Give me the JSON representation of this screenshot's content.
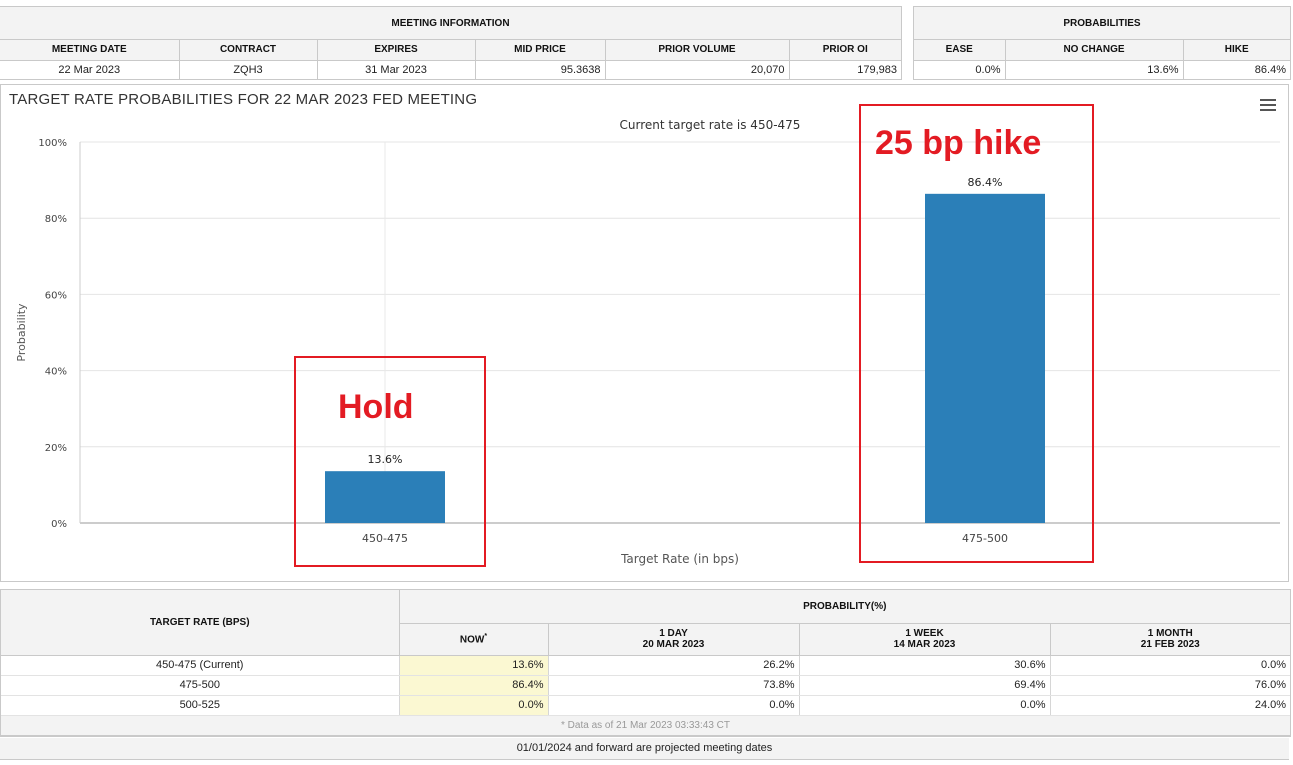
{
  "meeting_info": {
    "header": "MEETING INFORMATION",
    "columns": [
      "MEETING DATE",
      "CONTRACT",
      "EXPIRES",
      "MID PRICE",
      "PRIOR VOLUME",
      "PRIOR OI"
    ],
    "row": [
      "22 Mar 2023",
      "ZQH3",
      "31 Mar 2023",
      "95.3638",
      "20,070",
      "179,983"
    ]
  },
  "probabilities": {
    "header": "PROBABILITIES",
    "columns": [
      "EASE",
      "NO CHANGE",
      "HIKE"
    ],
    "row": [
      "0.0%",
      "13.6%",
      "86.4%"
    ]
  },
  "chart": {
    "title": "TARGET RATE PROBABILITIES FOR 22 MAR 2023 FED MEETING",
    "subtitle": "Current target rate is 450-475",
    "menu_icon": "hamburger-menu-icon"
  },
  "chart_data": {
    "type": "bar",
    "title": "TARGET RATE PROBABILITIES FOR 22 MAR 2023 FED MEETING",
    "subtitle": "Current target rate is 450-475",
    "categories": [
      "450-475",
      "475-500"
    ],
    "values": [
      13.6,
      86.4
    ],
    "data_labels": [
      "13.6%",
      "86.4%"
    ],
    "xlabel": "Target Rate (in bps)",
    "ylabel": "Probability",
    "ylim": [
      0,
      100
    ],
    "yticks": [
      "0%",
      "20%",
      "40%",
      "60%",
      "80%",
      "100%"
    ],
    "grid": true,
    "bar_color": "#2b7fb8"
  },
  "annotations": {
    "hold": "Hold",
    "hike": "25 bp hike",
    "color": "#e31b23"
  },
  "bottom_table": {
    "target_header": "TARGET RATE (BPS)",
    "prob_header": "PROBABILITY(%)",
    "cols": [
      {
        "line1": "NOW",
        "line2": "",
        "mark": "*"
      },
      {
        "line1": "1 DAY",
        "line2": "20 MAR 2023",
        "mark": ""
      },
      {
        "line1": "1 WEEK",
        "line2": "14 MAR 2023",
        "mark": ""
      },
      {
        "line1": "1 MONTH",
        "line2": "21 FEB 2023",
        "mark": ""
      }
    ],
    "rows": [
      {
        "rate": "450-475 (Current)",
        "vals": [
          "13.6%",
          "26.2%",
          "30.6%",
          "0.0%"
        ]
      },
      {
        "rate": "475-500",
        "vals": [
          "86.4%",
          "73.8%",
          "69.4%",
          "76.0%"
        ]
      },
      {
        "rate": "500-525",
        "vals": [
          "0.0%",
          "0.0%",
          "0.0%",
          "24.0%"
        ]
      }
    ],
    "data_note": "* Data as of 21 Mar 2023 03:33:43 CT",
    "footer": "01/01/2024 and forward are projected meeting dates"
  }
}
